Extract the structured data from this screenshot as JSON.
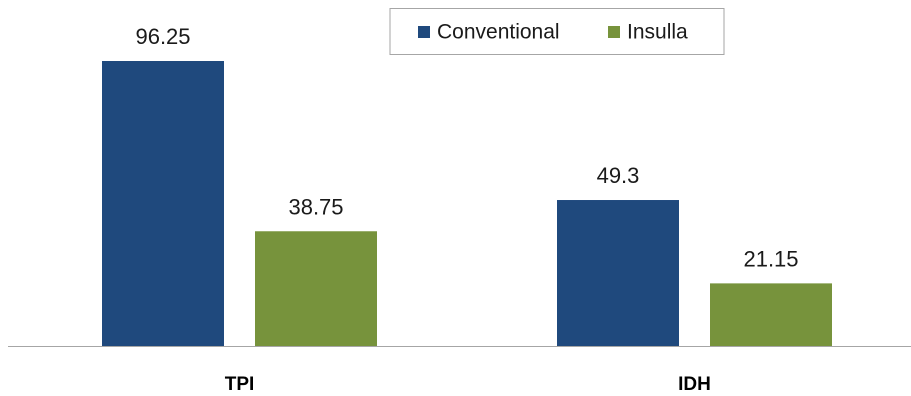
{
  "chart_data": {
    "type": "bar",
    "categories": [
      "TPI",
      "IDH"
    ],
    "series": [
      {
        "name": "Conventional",
        "values": [
          96.25,
          49.3
        ],
        "labels": [
          "96.25",
          "49.3"
        ],
        "color": "#1f497d"
      },
      {
        "name": "Insulla",
        "values": [
          38.75,
          21.15
        ],
        "labels": [
          "38.75",
          "21.15"
        ],
        "color": "#77933c"
      }
    ],
    "title": "",
    "xlabel": "",
    "ylabel": "",
    "ylim": [
      0,
      100
    ],
    "grid": false,
    "legend": "top-center",
    "axis_color": "#a6a6a6"
  }
}
